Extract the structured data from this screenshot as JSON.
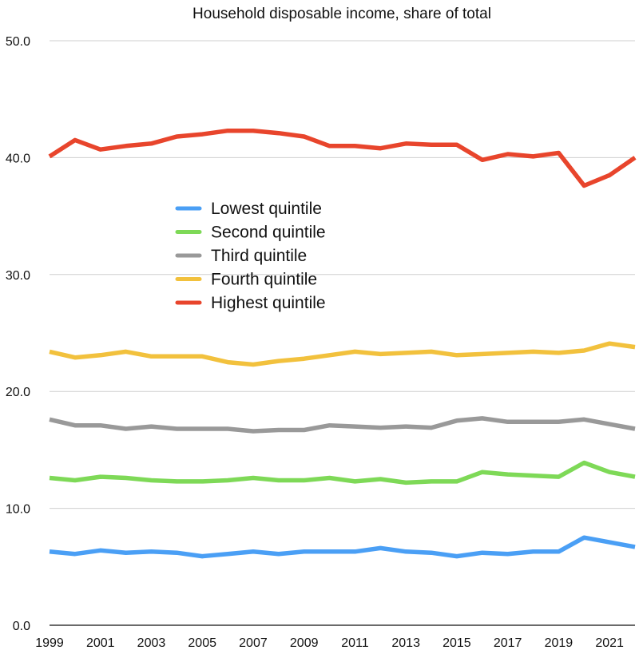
{
  "chart_data": {
    "type": "line",
    "title": "Household disposable income, share of total",
    "xlabel": "",
    "ylabel": "",
    "ylim": [
      0,
      50
    ],
    "yticks": [
      "0.0",
      "10.0",
      "20.0",
      "30.0",
      "40.0",
      "50.0"
    ],
    "xlim": [
      1999,
      2022
    ],
    "xticks": [
      "1999",
      "2001",
      "2003",
      "2005",
      "2007",
      "2009",
      "2011",
      "2013",
      "2015",
      "2017",
      "2019",
      "2021"
    ],
    "grid": true,
    "legend_position": "center-left",
    "x": [
      1999,
      2000,
      2001,
      2002,
      2003,
      2004,
      2005,
      2006,
      2007,
      2008,
      2009,
      2010,
      2011,
      2012,
      2013,
      2014,
      2015,
      2016,
      2017,
      2018,
      2019,
      2020,
      2021,
      2022
    ],
    "series": [
      {
        "name": "Lowest quintile",
        "color": "#4a9ff5",
        "values": [
          6.3,
          6.1,
          6.4,
          6.2,
          6.3,
          6.2,
          5.9,
          6.1,
          6.3,
          6.1,
          6.3,
          6.3,
          6.3,
          6.6,
          6.3,
          6.2,
          5.9,
          6.2,
          6.1,
          6.3,
          6.3,
          7.5,
          7.1,
          6.7
        ]
      },
      {
        "name": "Second quintile",
        "color": "#7ed957",
        "values": [
          12.6,
          12.4,
          12.7,
          12.6,
          12.4,
          12.3,
          12.3,
          12.4,
          12.6,
          12.4,
          12.4,
          12.6,
          12.3,
          12.5,
          12.2,
          12.3,
          12.3,
          13.1,
          12.9,
          12.8,
          12.7,
          13.9,
          13.1,
          12.7
        ]
      },
      {
        "name": "Third quintile",
        "color": "#999999",
        "values": [
          17.6,
          17.1,
          17.1,
          16.8,
          17.0,
          16.8,
          16.8,
          16.8,
          16.6,
          16.7,
          16.7,
          17.1,
          17.0,
          16.9,
          17.0,
          16.9,
          17.5,
          17.7,
          17.4,
          17.4,
          17.4,
          17.6,
          17.2,
          16.8
        ]
      },
      {
        "name": "Fourth quintile",
        "color": "#f2c13d",
        "values": [
          23.4,
          22.9,
          23.1,
          23.4,
          23.0,
          23.0,
          23.0,
          22.5,
          22.3,
          22.6,
          22.8,
          23.1,
          23.4,
          23.2,
          23.3,
          23.4,
          23.1,
          23.2,
          23.3,
          23.4,
          23.3,
          23.5,
          24.1,
          23.8
        ]
      },
      {
        "name": "Highest quintile",
        "color": "#e8452c",
        "values": [
          40.1,
          41.5,
          40.7,
          41.0,
          41.2,
          41.8,
          42.0,
          42.3,
          42.3,
          42.1,
          41.8,
          41.0,
          41.0,
          40.8,
          41.2,
          41.1,
          41.1,
          39.8,
          40.3,
          40.1,
          40.4,
          37.6,
          38.5,
          40.0
        ]
      }
    ]
  }
}
